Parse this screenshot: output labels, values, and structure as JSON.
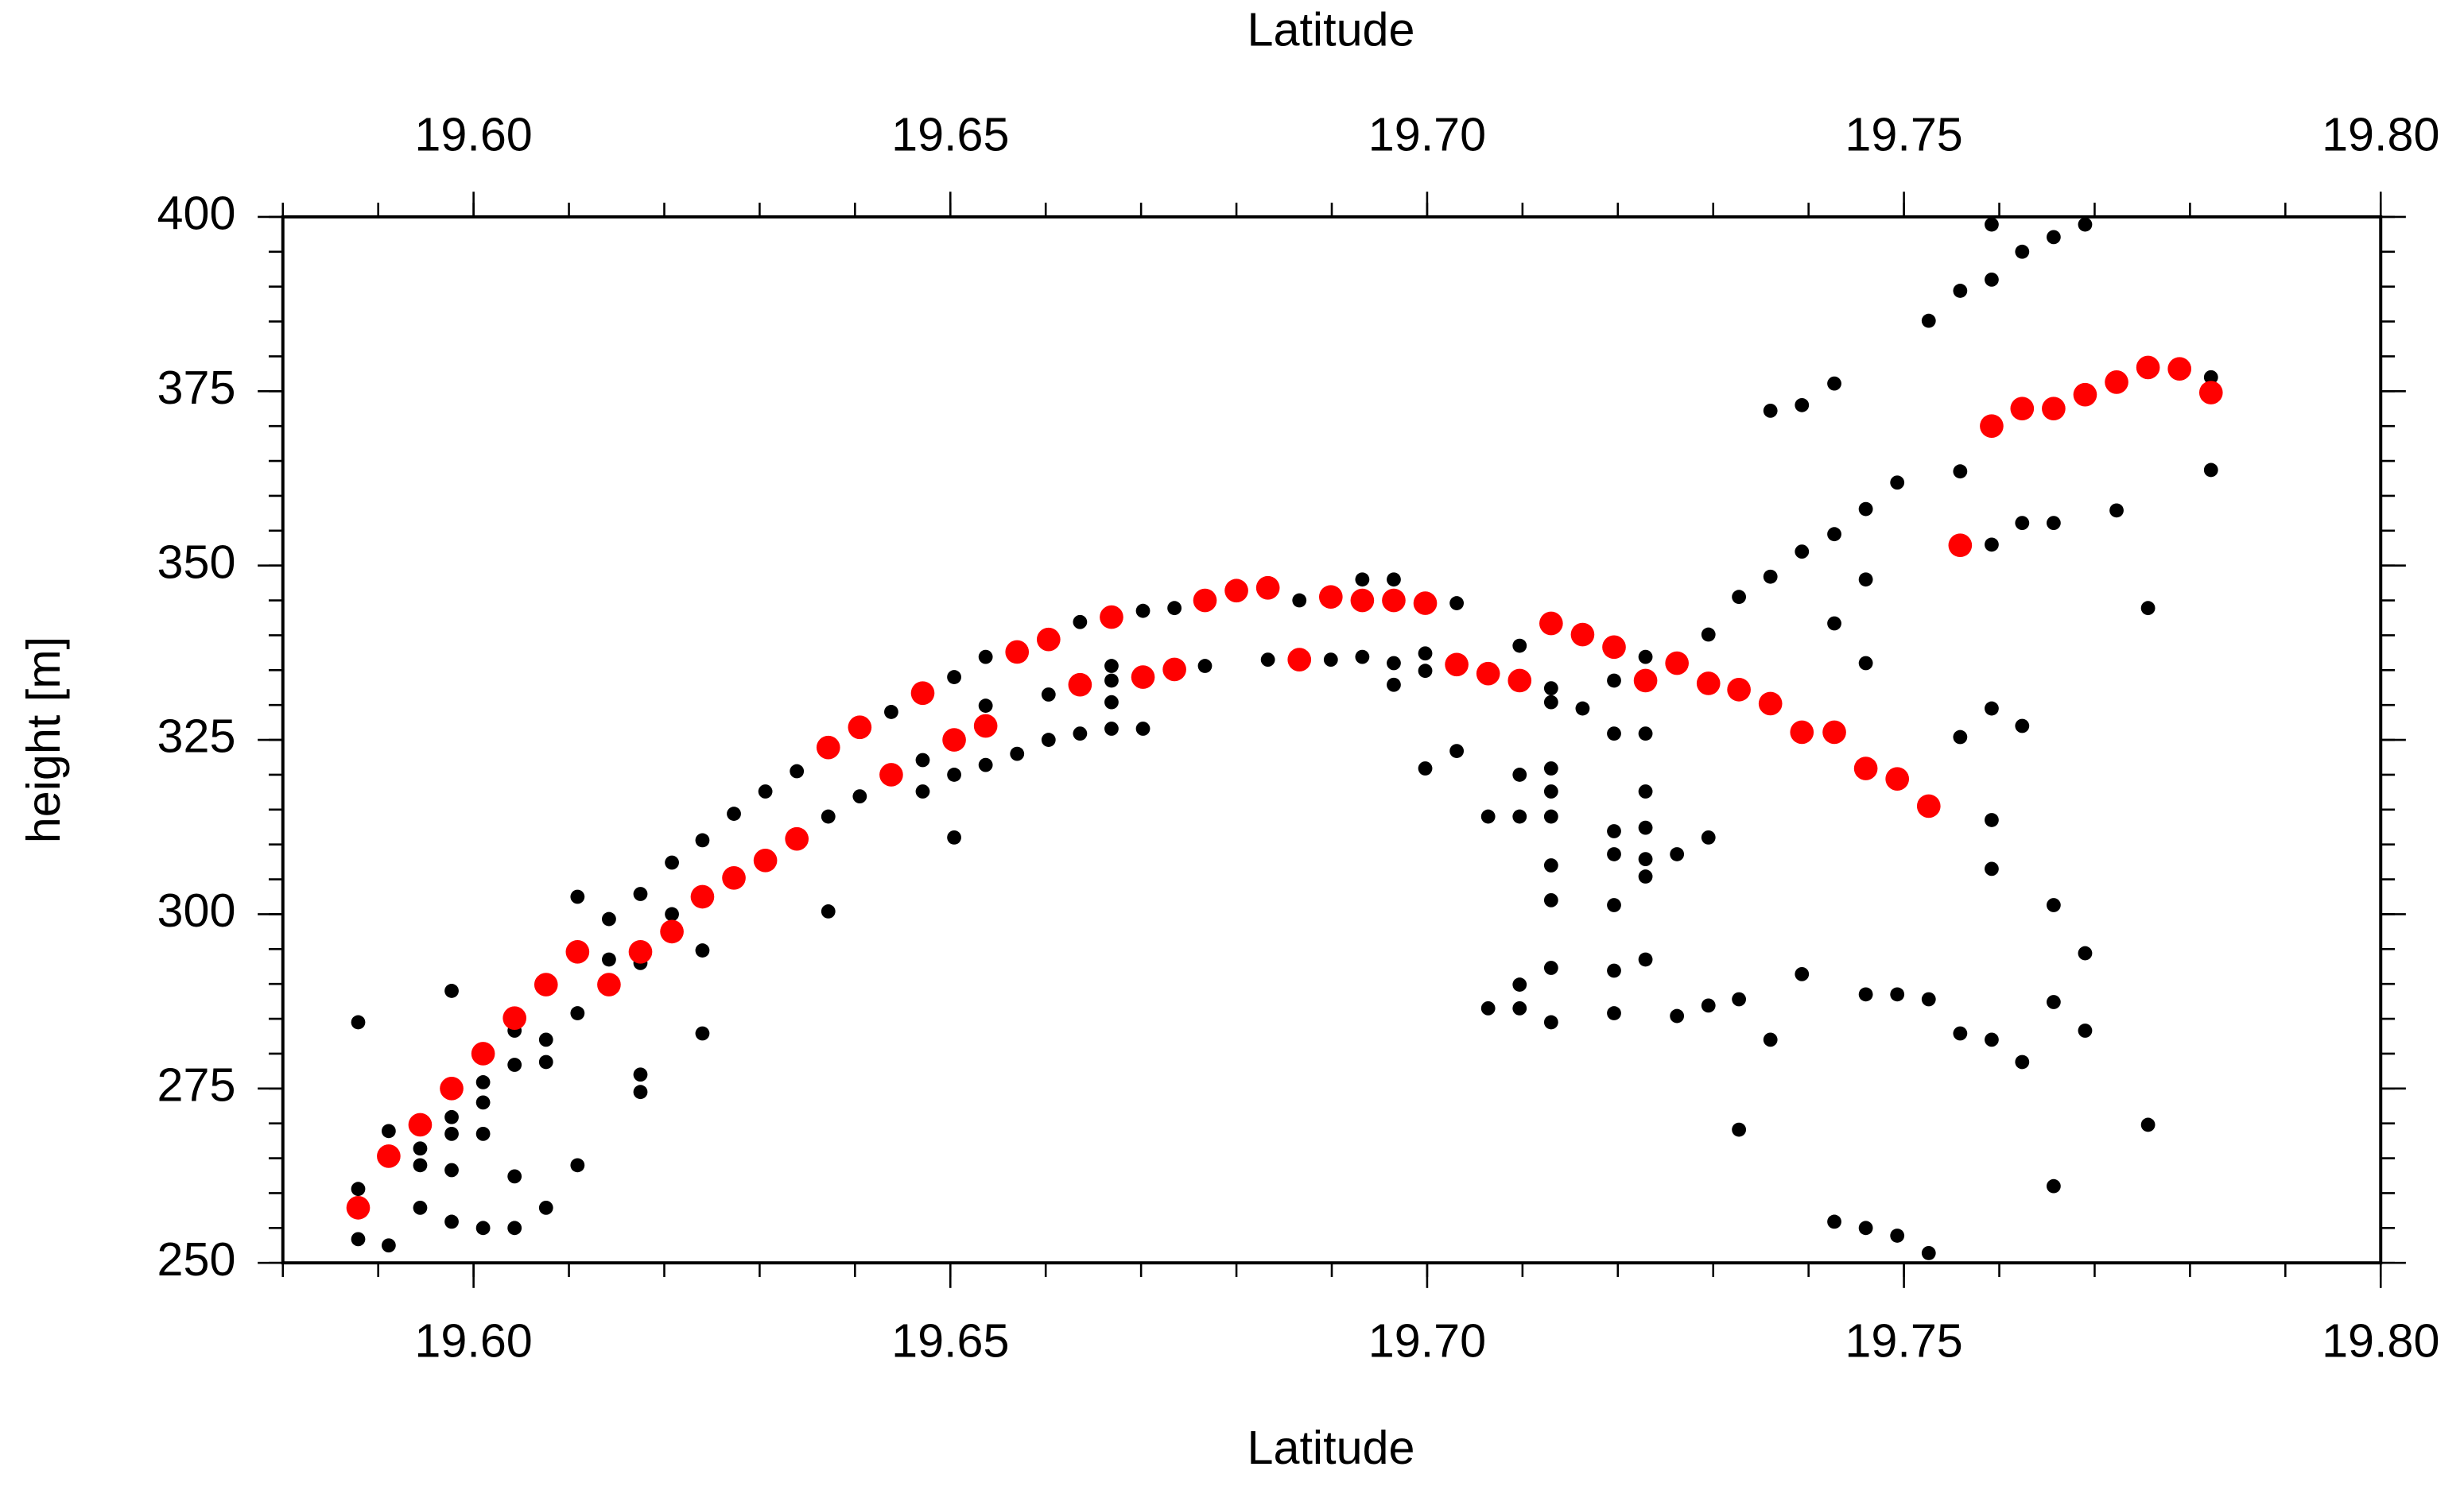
{
  "chart_data": {
    "type": "scatter",
    "xlabel": "Latitude",
    "ylabel": "height [m]",
    "xlim": [
      19.58,
      19.8
    ],
    "ylim": [
      250,
      400
    ],
    "xticks": [
      {
        "value": 19.6,
        "label": "19.60"
      },
      {
        "value": 19.65,
        "label": "19.65"
      },
      {
        "value": 19.7,
        "label": "19.70"
      },
      {
        "value": 19.75,
        "label": "19.75"
      },
      {
        "value": 19.8,
        "label": "19.80"
      }
    ],
    "yticks": [
      250,
      275,
      300,
      325,
      350,
      375,
      400
    ],
    "xminorticks": [
      19.58,
      19.59,
      19.6,
      19.61,
      19.62,
      19.63,
      19.64,
      19.65,
      19.66,
      19.67,
      19.68,
      19.69,
      19.7,
      19.71,
      19.72,
      19.73,
      19.74,
      19.75,
      19.76,
      19.77,
      19.78,
      19.79,
      19.8
    ],
    "yminorticks": [
      250,
      255,
      260,
      265,
      270,
      275,
      280,
      285,
      290,
      295,
      300,
      305,
      310,
      315,
      320,
      325,
      330,
      335,
      340,
      345,
      350,
      355,
      360,
      365,
      370,
      375,
      380,
      385,
      390,
      395,
      400
    ],
    "grid": false,
    "series": [
      {
        "color": "#000000",
        "x": [
          19.5879,
          19.5879,
          19.5879,
          19.5911,
          19.5911,
          19.5944,
          19.5944,
          19.5944,
          19.5977,
          19.5977,
          19.5977,
          19.5977,
          19.5977,
          19.601,
          19.601,
          19.601,
          19.601,
          19.6043,
          19.6043,
          19.6043,
          19.6043,
          19.6076,
          19.6076,
          19.6076,
          19.6109,
          19.6109,
          19.6109,
          19.6142,
          19.6142,
          19.6175,
          19.6175,
          19.6175,
          19.6175,
          19.6208,
          19.6208,
          19.624,
          19.624,
          19.624,
          19.6273,
          19.6306,
          19.6339,
          19.6372,
          19.6372,
          19.6405,
          19.6438,
          19.6471,
          19.6471,
          19.6504,
          19.6504,
          19.6504,
          19.6537,
          19.6537,
          19.6537,
          19.657,
          19.6603,
          19.6603,
          19.6636,
          19.6636,
          19.6669,
          19.6669,
          19.6669,
          19.6669,
          19.6702,
          19.6702,
          19.6735,
          19.6767,
          19.6833,
          19.6866,
          19.6899,
          19.6932,
          19.6932,
          19.6965,
          19.6965,
          19.6965,
          19.6998,
          19.6998,
          19.6998,
          19.7031,
          19.7031,
          19.7064,
          19.7064,
          19.7097,
          19.7097,
          19.7097,
          19.7097,
          19.7097,
          19.713,
          19.713,
          19.713,
          19.713,
          19.713,
          19.713,
          19.713,
          19.713,
          19.713,
          19.7163,
          19.7196,
          19.7196,
          19.7196,
          19.7196,
          19.7196,
          19.7196,
          19.7196,
          19.7229,
          19.7229,
          19.7229,
          19.7229,
          19.7229,
          19.7229,
          19.7229,
          19.7262,
          19.7262,
          19.7295,
          19.7295,
          19.7295,
          19.7327,
          19.7327,
          19.7327,
          19.736,
          19.736,
          19.736,
          19.7393,
          19.7393,
          19.7393,
          19.7427,
          19.7427,
          19.7427,
          19.7427,
          19.746,
          19.746,
          19.746,
          19.746,
          19.746,
          19.7493,
          19.7493,
          19.7493,
          19.7526,
          19.7526,
          19.7526,
          19.7559,
          19.7559,
          19.7559,
          19.7559,
          19.7592,
          19.7592,
          19.7592,
          19.7592,
          19.7592,
          19.7592,
          19.7592,
          19.7624,
          19.7624,
          19.7624,
          19.7624,
          19.7657,
          19.7657,
          19.7657,
          19.7657,
          19.7657,
          19.769,
          19.769,
          19.769,
          19.7723,
          19.7756,
          19.7756,
          19.7822,
          19.7822
        ],
        "values": [
          284.5,
          260.6,
          253.4,
          268.9,
          252.5,
          266.4,
          264.0,
          257.9,
          289.0,
          270.9,
          268.5,
          263.3,
          255.9,
          275.9,
          273.0,
          268.5,
          255.0,
          283.3,
          278.4,
          262.4,
          255.0,
          282.0,
          278.8,
          257.9,
          302.5,
          285.8,
          264.0,
          299.3,
          293.5,
          302.9,
          293.0,
          277.0,
          274.5,
          307.4,
          300.0,
          310.6,
          294.8,
          282.9,
          314.4,
          317.6,
          320.5,
          314.0,
          300.4,
          316.9,
          329.0,
          322.1,
          317.6,
          334.0,
          320.0,
          311.0,
          336.9,
          329.9,
          321.4,
          323.0,
          331.5,
          325.0,
          341.9,
          325.9,
          335.6,
          333.5,
          330.4,
          326.6,
          343.5,
          326.6,
          343.9,
          335.6,
          336.5,
          345.0,
          336.5,
          348.0,
          336.9,
          348.0,
          336.0,
          332.9,
          337.4,
          334.9,
          320.9,
          344.6,
          323.4,
          314.0,
          286.5,
          338.5,
          320.0,
          314.0,
          289.9,
          286.5,
          332.4,
          330.4,
          320.9,
          317.6,
          314.0,
          307.0,
          302.0,
          292.3,
          284.5,
          329.5,
          333.5,
          325.9,
          311.9,
          308.6,
          301.3,
          291.9,
          285.8,
          336.9,
          325.9,
          317.6,
          312.4,
          307.9,
          305.4,
          293.5,
          308.6,
          285.4,
          340.1,
          311.0,
          286.9,
          345.5,
          287.8,
          269.1,
          348.4,
          372.2,
          282.0,
          352.0,
          373.0,
          291.4,
          376.1,
          354.5,
          341.7,
          255.9,
          358.1,
          348.0,
          336.0,
          288.5,
          255.0,
          361.9,
          288.5,
          253.9,
          385.1,
          287.8,
          251.4,
          389.4,
          363.5,
          325.4,
          282.9,
          398.9,
          391.0,
          353.0,
          329.5,
          313.5,
          306.5,
          282.0,
          395.0,
          356.1,
          327.0,
          278.8,
          397.1,
          356.1,
          301.3,
          287.4,
          261.0,
          398.9,
          294.4,
          283.3,
          357.9,
          343.9,
          269.8,
          377.0,
          363.7
        ]
      },
      {
        "color": "#ff0000",
        "x": [
          19.5879,
          19.5911,
          19.5944,
          19.5977,
          19.601,
          19.6043,
          19.6076,
          19.6109,
          19.6142,
          19.6175,
          19.6208,
          19.624,
          19.6273,
          19.6306,
          19.6339,
          19.6372,
          19.6405,
          19.6438,
          19.6471,
          19.6504,
          19.6537,
          19.657,
          19.6603,
          19.6636,
          19.6669,
          19.6702,
          19.6735,
          19.6767,
          19.68,
          19.6833,
          19.6866,
          19.6899,
          19.6932,
          19.6965,
          19.6998,
          19.7031,
          19.7064,
          19.7097,
          19.713,
          19.7163,
          19.7196,
          19.7229,
          19.7262,
          19.7295,
          19.7327,
          19.736,
          19.7393,
          19.7427,
          19.746,
          19.7493,
          19.7526,
          19.7559,
          19.7592,
          19.7624,
          19.7657,
          19.769,
          19.7723,
          19.7756,
          19.7789,
          19.7822
        ],
        "values": [
          257.9,
          265.3,
          269.8,
          275.0,
          280.0,
          285.1,
          289.9,
          294.6,
          289.9,
          294.6,
          297.5,
          302.5,
          305.2,
          307.7,
          310.8,
          323.9,
          326.8,
          320.0,
          331.7,
          325.0,
          327.0,
          337.6,
          339.4,
          332.9,
          342.6,
          334.0,
          335.1,
          345.0,
          346.4,
          346.8,
          336.5,
          345.5,
          345.0,
          345.0,
          344.6,
          335.8,
          334.5,
          333.5,
          341.7,
          340.1,
          338.3,
          333.5,
          336.0,
          333.1,
          332.2,
          330.2,
          326.1,
          326.1,
          320.9,
          319.4,
          315.5,
          352.9,
          370.0,
          372.5,
          372.5,
          374.5,
          376.3,
          378.4,
          378.2,
          374.8
        ]
      }
    ]
  }
}
